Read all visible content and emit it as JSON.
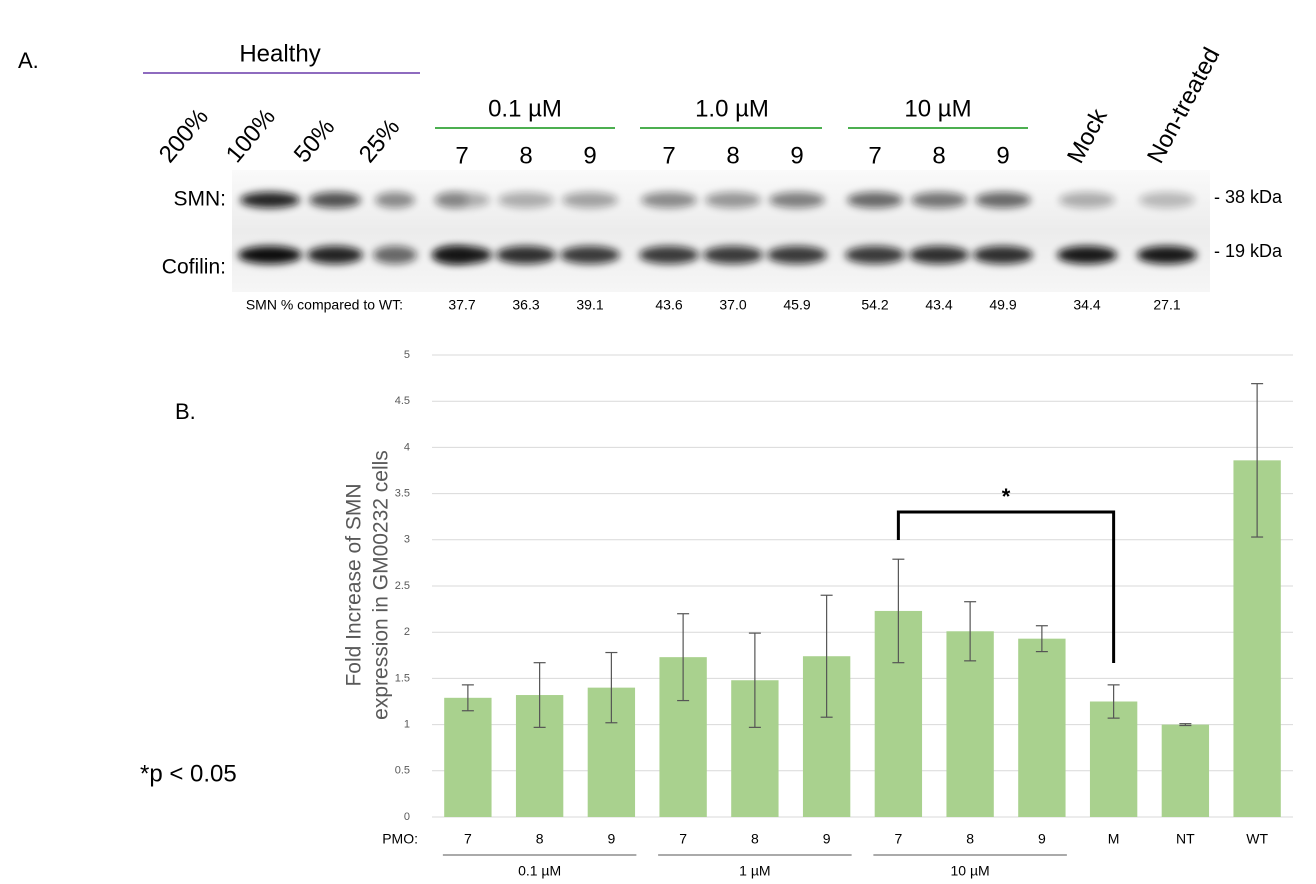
{
  "panel_a": {
    "label": "A.",
    "healthy": "Healthy",
    "healthy_lanes": [
      "200%",
      "100%",
      "50%",
      "25%"
    ],
    "groups": [
      {
        "label": "0.1 µM",
        "lanes": [
          "7",
          "8",
          "9"
        ]
      },
      {
        "label": "1.0 µM",
        "lanes": [
          "7",
          "8",
          "9"
        ]
      },
      {
        "label": "10 µM",
        "lanes": [
          "7",
          "8",
          "9"
        ]
      }
    ],
    "extra_lanes": [
      "Mock",
      "Non-treated"
    ],
    "rows": [
      {
        "label": "SMN:",
        "size": "- 38 kDa"
      },
      {
        "label": "Cofilin:",
        "size": "- 19 kDa"
      }
    ],
    "quant_label": "SMN % compared to WT:",
    "quant": [
      "37.7",
      "36.3",
      "39.1",
      "43.6",
      "37.0",
      "45.9",
      "54.2",
      "43.4",
      "49.9",
      "34.4",
      "27.1"
    ]
  },
  "panel_b_label": "B.",
  "note": "*p < 0.05",
  "chart_data": {
    "type": "bar",
    "y_label": [
      "Fold Increase of SMN",
      "expression in GM00232 cells"
    ],
    "x_prefix": "PMO:",
    "categories": [
      "7",
      "8",
      "9",
      "7",
      "8",
      "9",
      "7",
      "8",
      "9",
      "M",
      "NT",
      "WT"
    ],
    "groups": [
      "0.1 µM",
      "1 µM",
      "10 µM"
    ],
    "values": [
      1.29,
      1.32,
      1.4,
      1.73,
      1.48,
      1.74,
      2.23,
      2.01,
      1.93,
      1.25,
      1.0,
      3.86
    ],
    "errors": [
      0.14,
      0.35,
      0.38,
      0.47,
      0.51,
      0.66,
      0.56,
      0.32,
      0.14,
      0.18,
      0.01,
      0.83
    ],
    "annotation": "*",
    "color": "#a9d18e",
    "ylim": [
      0,
      5
    ],
    "yticks": [
      0,
      0.5,
      1,
      1.5,
      2,
      2.5,
      3,
      3.5,
      4,
      4.5,
      5
    ],
    "grid": true
  }
}
